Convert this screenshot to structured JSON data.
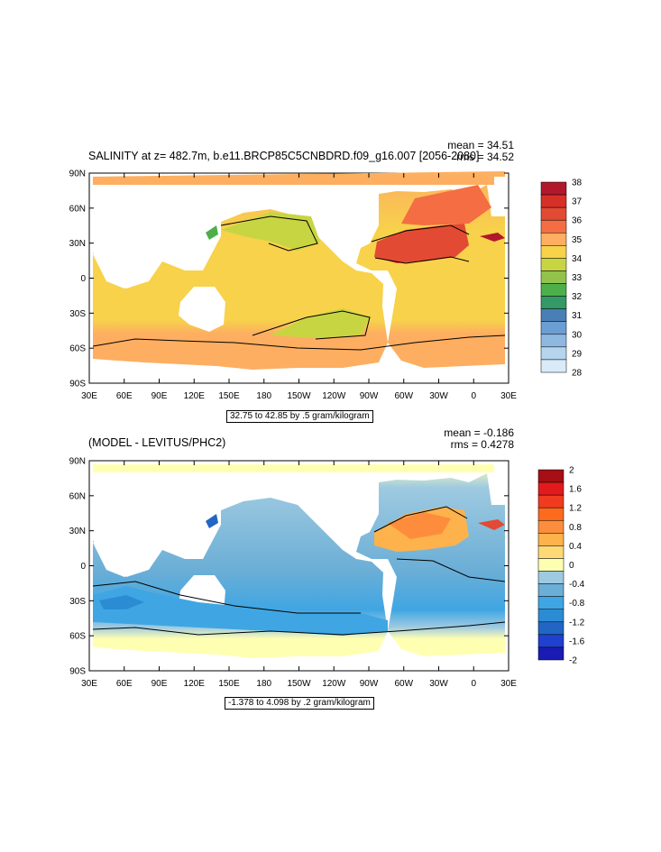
{
  "chart_data": [
    {
      "type": "heatmap",
      "title": "SALINITY at z= 482.7m, b.e11.BRCP85C5CNBDRD.f09_g16.007 [2056-2080]",
      "stats": {
        "mean": "mean = 34.51",
        "rms": "rms = 34.52"
      },
      "contour_info": "32.75 to 42.85 by .5 gram/kilogram",
      "x_ticks": [
        "30E",
        "60E",
        "90E",
        "120E",
        "150E",
        "180",
        "150W",
        "120W",
        "90W",
        "60W",
        "30W",
        "0",
        "30E"
      ],
      "y_ticks": [
        "90N",
        "60N",
        "30N",
        "0",
        "30S",
        "60S",
        "90S"
      ],
      "colorbar": {
        "labels": [
          "38",
          "37",
          "36",
          "35",
          "34",
          "33",
          "32",
          "31",
          "30",
          "29",
          "28"
        ],
        "colors": [
          "#b2182b",
          "#d73027",
          "#e34a33",
          "#f46d43",
          "#fdae61",
          "#f7d24a",
          "#c8d543",
          "#92c24b",
          "#4daf4a",
          "#339966",
          "#4a7fb5",
          "#6b9ed2",
          "#8fb8e0",
          "#b5d4ee",
          "#d9ebf8"
        ]
      }
    },
    {
      "type": "heatmap",
      "title": "(MODEL - LEVITUS/PHC2)",
      "stats": {
        "mean": "mean = -0.186",
        "rms": "rms = 0.4278"
      },
      "contour_info": "-1.378 to 4.098 by .2 gram/kilogram",
      "x_ticks": [
        "30E",
        "60E",
        "90E",
        "120E",
        "150E",
        "180",
        "150W",
        "120W",
        "90W",
        "60W",
        "30W",
        "0",
        "30E"
      ],
      "y_ticks": [
        "90N",
        "60N",
        "30N",
        "0",
        "30S",
        "60S",
        "90S"
      ],
      "colorbar": {
        "labels": [
          "2",
          "1.6",
          "1.2",
          "0.8",
          "0.4",
          "0",
          "-0.4",
          "-0.8",
          "-1.2",
          "-1.6",
          "-2"
        ],
        "colors": [
          "#a50f15",
          "#e31a1c",
          "#f03b20",
          "#fd6a1c",
          "#fd8d3c",
          "#feb24c",
          "#fed976",
          "#ffffb2",
          "#9ecae1",
          "#6baed6",
          "#3fa6e3",
          "#2b8cd4",
          "#2166c4",
          "#2040d0",
          "#1a1ab5"
        ]
      }
    }
  ]
}
